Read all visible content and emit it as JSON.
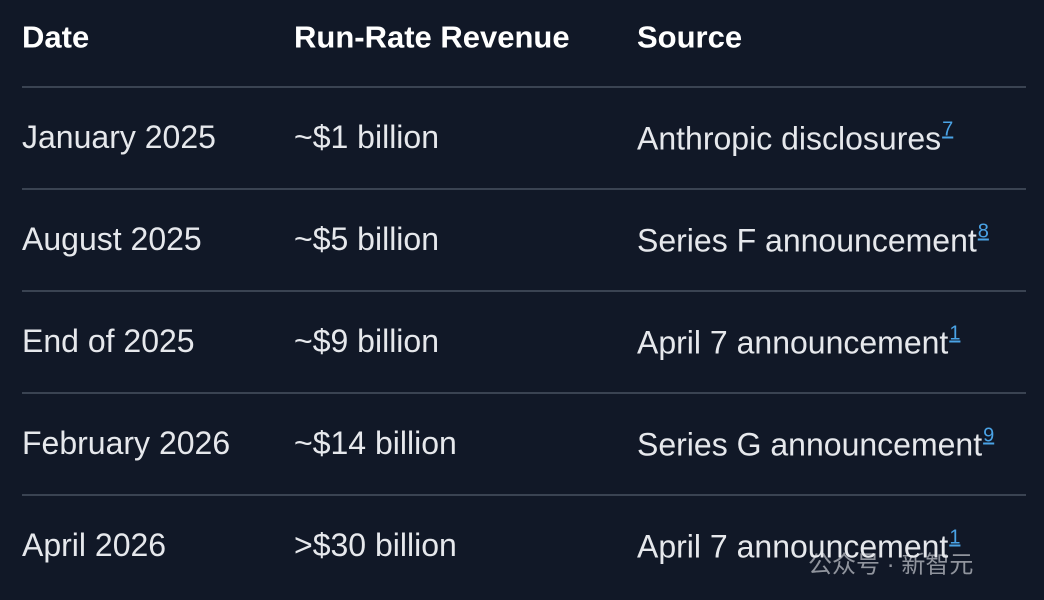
{
  "table": {
    "header": [
      "Date",
      "Run-Rate Revenue",
      "Source"
    ],
    "rows": [
      {
        "date": "January 2025",
        "revenue": "~$1 billion",
        "source": "Anthropic disclosures",
        "ref": "7"
      },
      {
        "date": "August 2025",
        "revenue": "~$5 billion",
        "source": "Series F announcement",
        "ref": "8"
      },
      {
        "date": "End of 2025",
        "revenue": "~$9 billion",
        "source": "April 7 announcement",
        "ref": "1"
      },
      {
        "date": "February 2026",
        "revenue": "~$14 billion",
        "source": "Series G announcement",
        "ref": "9"
      },
      {
        "date": "April 2026",
        "revenue": ">$30 billion",
        "source": "April 7 announcement",
        "ref": "1"
      }
    ]
  },
  "watermark": "公众号 · 新智元"
}
